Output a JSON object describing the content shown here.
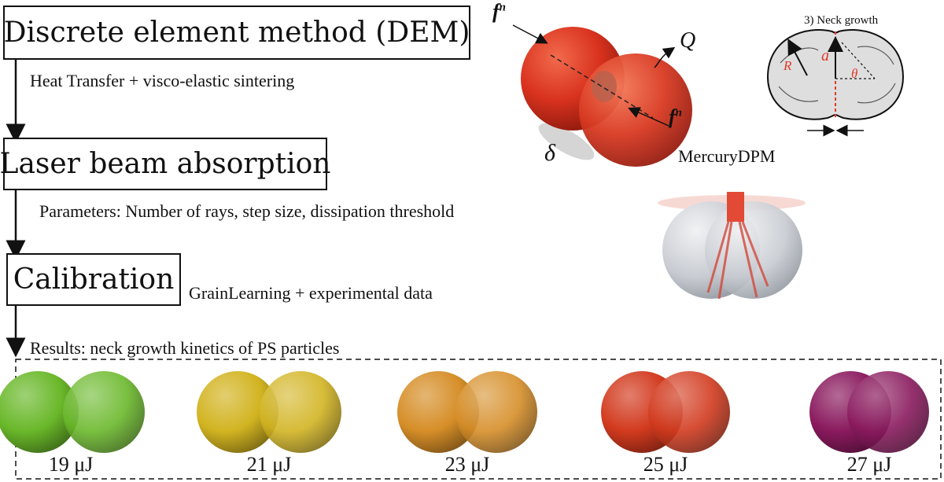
{
  "steps": {
    "dem": {
      "title": "Discrete element method (DEM)",
      "note": "Heat Transfer + visco-elastic sintering"
    },
    "laser": {
      "title": "Laser beam absorption",
      "note": "Parameters: Number of rays, step size, dissipation threshold"
    },
    "calibration": {
      "title": "Calibration",
      "note": "GrainLearning + experimental data"
    }
  },
  "results": {
    "title": "Results: neck growth kinetics of PS particles",
    "items": [
      {
        "label": "19 μJ",
        "color": "#6ab82a"
      },
      {
        "label": "21 μJ",
        "color": "#d2b421"
      },
      {
        "label": "23 μJ",
        "color": "#d68e28"
      },
      {
        "label": "25 μJ",
        "color": "#d23a1e"
      },
      {
        "label": "27 μJ",
        "color": "#8a1a5e"
      }
    ]
  },
  "illustrations": {
    "dem_pair": {
      "force_label": "f",
      "force_sup": "n",
      "heat_label": "Q",
      "overlap_label": "δ",
      "caption": "MercuryDPM",
      "color": "#d8321e"
    },
    "neck_diagram": {
      "title": "3) Neck growth",
      "radius_label": "R",
      "neck_label": "a",
      "angle_label": "θ"
    }
  }
}
